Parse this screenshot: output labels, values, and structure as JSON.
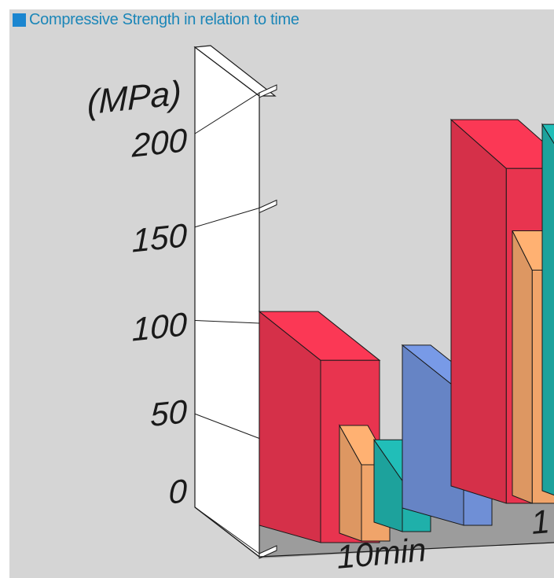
{
  "title": "Compressive Strength in relation to time",
  "colors": {
    "title_text": "#1b86b8",
    "title_square": "#1b86d0",
    "background": "#d5d5d5",
    "floor": "#9c9c9c"
  },
  "chart_data": {
    "type": "bar",
    "ylabel": "(MPa)",
    "ylim": [
      0,
      200
    ],
    "yticks": [
      "0",
      "50",
      "100",
      "150",
      "200"
    ],
    "categories": [
      "10min",
      "1"
    ],
    "series": [
      {
        "color": "#e8344f",
        "values": [
          86,
          158
        ]
      },
      {
        "color": "#f0a46a",
        "values": [
          36,
          110
        ]
      },
      {
        "color": "#1fb0aa",
        "values": [
          24,
          158
        ]
      },
      {
        "color": "#6f8fd6",
        "values": [
          62,
          null
        ]
      }
    ]
  }
}
